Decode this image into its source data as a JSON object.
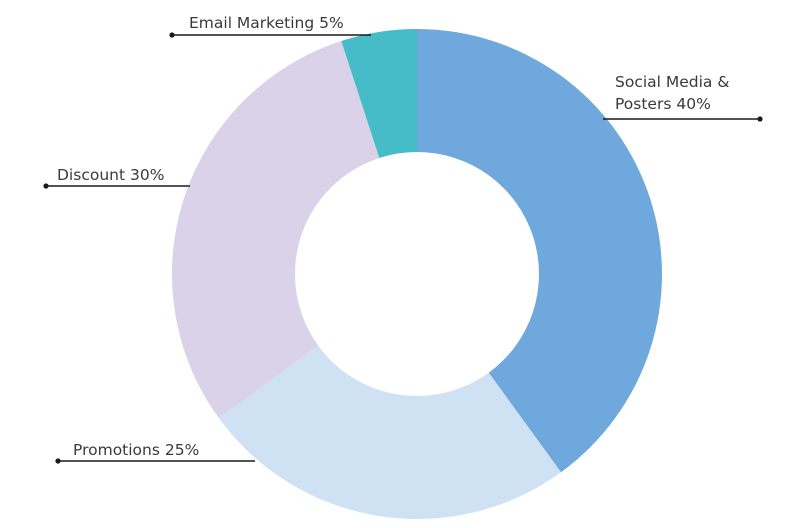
{
  "chart_data": {
    "type": "pie",
    "variant": "donut",
    "title": "",
    "slices": [
      {
        "label": "Social Media & Posters 40%",
        "label_lines": [
          "Social Media &",
          "Posters 40%"
        ],
        "value": 40,
        "color": "#6fa8dc"
      },
      {
        "label": "Promotions 25%",
        "label_lines": [
          "Promotions 25%"
        ],
        "value": 25,
        "color": "#cfe2f3"
      },
      {
        "label": "Discount 30%",
        "label_lines": [
          "Discount 30%"
        ],
        "value": 30,
        "color": "#d9d2e9"
      },
      {
        "label": "Email Marketing 5%",
        "label_lines": [
          "Email Marketing 5%"
        ],
        "value": 5,
        "color": "#45bcc8"
      }
    ],
    "legend": "none",
    "labels": "outside with leader lines"
  }
}
